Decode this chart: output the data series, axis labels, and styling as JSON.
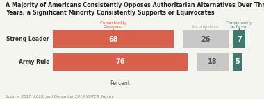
{
  "title": "A Majority of Americans Consistently Opposes Authoritarian Alternatives Over Three\nYears, a Significant Minority Consistently Supports or Equivocates",
  "categories": [
    "Strong Leader",
    "Army Rule"
  ],
  "opposed": [
    68,
    76
  ],
  "inconsistent": [
    26,
    18
  ],
  "in_favor": [
    7,
    5
  ],
  "color_opposed": "#d9604a",
  "color_inconsistent": "#c8c8c8",
  "color_in_favor": "#3d7a6e",
  "label_opposed_color": "#d9604a",
  "label_in_favor_color": "#3d7a6e",
  "label_inconsistent_color": "#aaaaaa",
  "source": "Source: 2017, 2018, and December 2019 VOTER Survey.",
  "xlabel": "Percent",
  "background_color": "#f5f5f0",
  "title_fontsize": 5.8,
  "cat_fontsize": 5.5,
  "bar_label_fontsize": 7.0,
  "header_fontsize": 4.5,
  "source_fontsize": 4.0,
  "xlabel_fontsize": 5.5
}
